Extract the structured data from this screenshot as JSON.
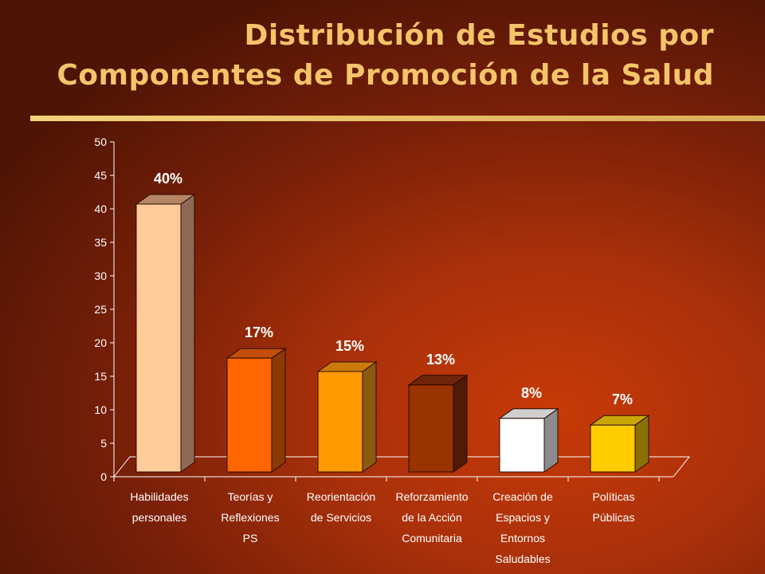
{
  "title": {
    "line1": "Distribución de Estudios por",
    "line2": "Componentes de Promoción de la Salud"
  },
  "chart_data": {
    "type": "bar",
    "style": "3d-column",
    "categories": [
      [
        "Habilidades",
        "personales"
      ],
      [
        "Teorías y",
        "Reflexiones",
        "PS"
      ],
      [
        "Reorientación",
        "de Servicios"
      ],
      [
        "Reforzamiento",
        "de la Acción",
        "Comunitaria"
      ],
      [
        "Creación de",
        "Espacios y",
        "Entornos",
        "Saludables"
      ],
      [
        "Políticas",
        "Públicas"
      ]
    ],
    "values": [
      40,
      17,
      15,
      13,
      8,
      7
    ],
    "data_labels": [
      "40%",
      "17%",
      "15%",
      "13%",
      "8%",
      "7%"
    ],
    "ylim": [
      0,
      50
    ],
    "yticks": [
      "0",
      "5",
      "10",
      "15",
      "20",
      "25",
      "30",
      "35",
      "40",
      "45",
      "50"
    ],
    "grid": false,
    "legend": "none",
    "bar_colors": [
      {
        "front": "#ffcc99",
        "side": "#8c6a55",
        "top": "#b68566"
      },
      {
        "front": "#ff6600",
        "side": "#8a3a06",
        "top": "#c24e08"
      },
      {
        "front": "#ff9900",
        "side": "#8c5a10",
        "top": "#cc7a0a"
      },
      {
        "front": "#993300",
        "side": "#4f1b06",
        "top": "#6e250a"
      },
      {
        "front": "#ffffff",
        "side": "#8c8c8c",
        "top": "#cfcfcf"
      },
      {
        "front": "#ffcc00",
        "side": "#8a7008",
        "top": "#c9a606"
      }
    ]
  }
}
